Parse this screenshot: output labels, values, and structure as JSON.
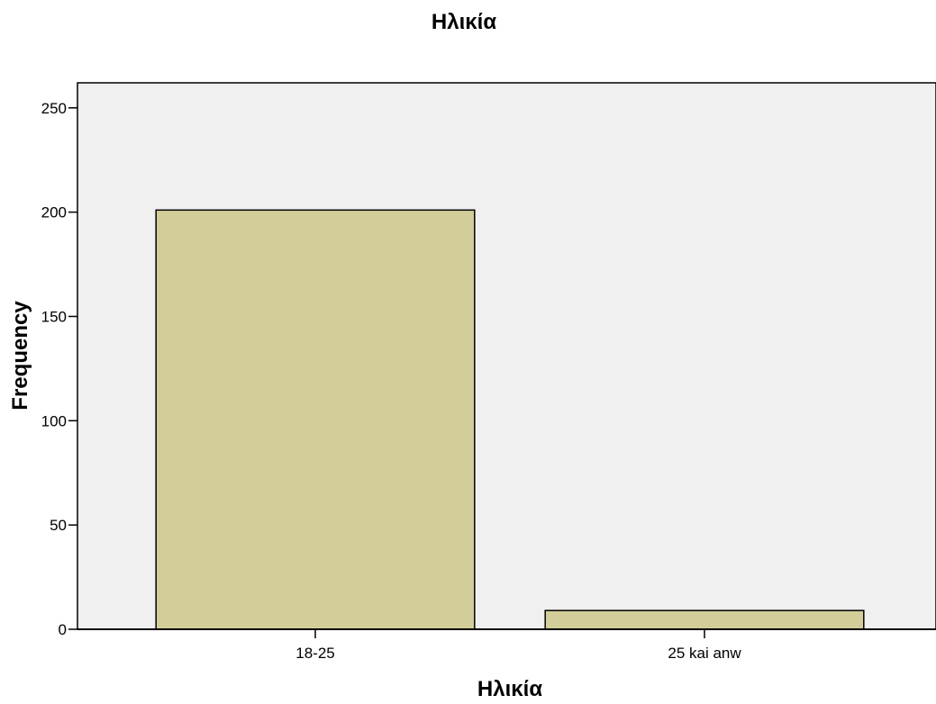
{
  "chart_data": {
    "type": "bar",
    "title": "Ηλικία",
    "xlabel": "Ηλικία",
    "ylabel": "Frequency",
    "categories": [
      "18-25",
      "25 kai anw"
    ],
    "values": [
      201,
      9
    ],
    "ylim": [
      0,
      262
    ],
    "yticks": [
      0,
      50,
      100,
      150,
      200,
      250
    ],
    "ytick_labels": [
      "0",
      "50",
      "100",
      "150",
      "200",
      "250"
    ],
    "grid": false,
    "legend": "none",
    "colors": {
      "bar_fill": "#d3ce99",
      "bar_stroke": "#000000",
      "plot_background": "#f0f0f0",
      "axis": "#000000"
    }
  }
}
